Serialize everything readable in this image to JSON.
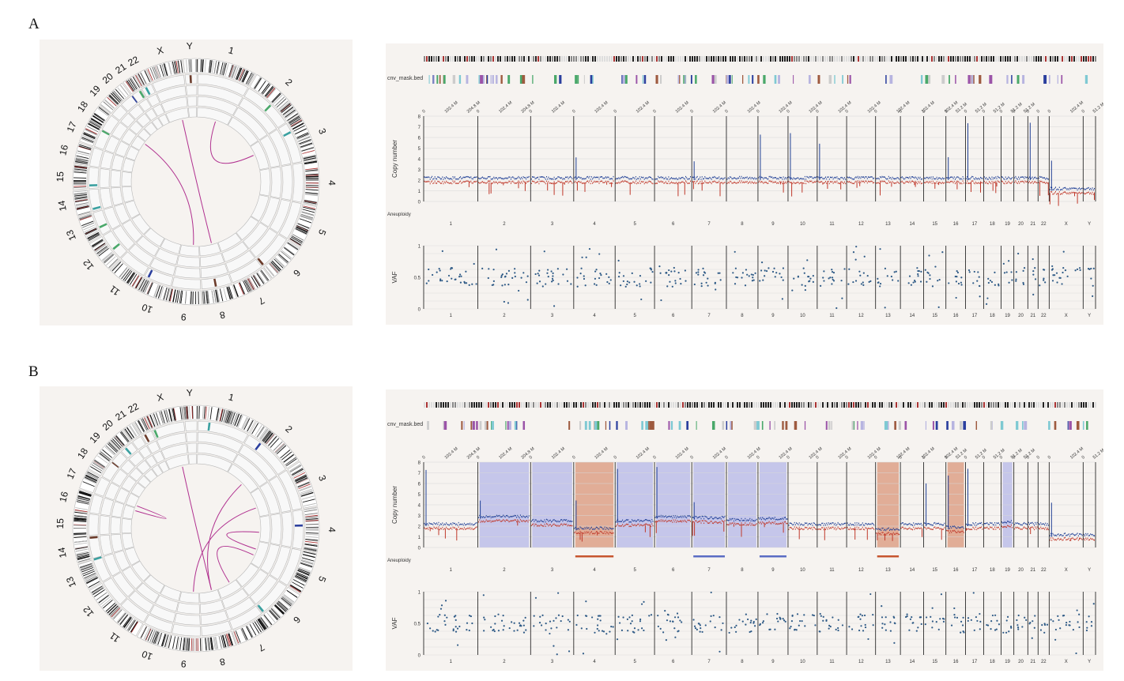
{
  "panels": [
    {
      "letter": "A",
      "track_label": "cnv_mask.bed",
      "cn_ylabel": "Copy number",
      "vaf_ylabel": "VAF",
      "aneuploidy_label": "Aneuploidy",
      "cn_yticks": [
        "0",
        "1",
        "2",
        "3",
        "4",
        "5",
        "6",
        "7",
        "8"
      ],
      "vaf_yticks": [
        "0",
        "0.5",
        "1"
      ]
    },
    {
      "letter": "B",
      "track_label": "cnv_mask.bed",
      "cn_ylabel": "Copy number",
      "vaf_ylabel": "VAF",
      "aneuploidy_label": "Aneuploidy",
      "cn_yticks": [
        "0",
        "1",
        "2",
        "3",
        "4",
        "5",
        "6",
        "7",
        "8"
      ],
      "vaf_yticks": [
        "0",
        "0.5",
        "1"
      ]
    }
  ],
  "chart_data": [
    {
      "type": "scatter",
      "panel": "A",
      "title": "",
      "xlabel": "",
      "ylabel": "Copy number",
      "ylim": [
        0,
        8
      ],
      "categories": [
        "1",
        "2",
        "3",
        "4",
        "5",
        "6",
        "7",
        "8",
        "9",
        "10",
        "11",
        "12",
        "13",
        "14",
        "15",
        "16",
        "17",
        "18",
        "19",
        "20",
        "21",
        "22",
        "X",
        "Y"
      ],
      "chrom_size_mb": [
        249,
        242,
        198,
        190,
        181,
        171,
        159,
        145,
        138,
        134,
        135,
        133,
        114,
        107,
        102,
        90,
        83,
        80,
        59,
        64,
        47,
        51,
        156,
        57
      ],
      "pos_ticks": [
        "0",
        "102.4 M",
        "204.8 M"
      ],
      "short_ticks": [
        "0",
        "51.2 M"
      ],
      "segments": [
        {
          "chrom": "1",
          "cn": 2
        },
        {
          "chrom": "2",
          "cn": 2
        },
        {
          "chrom": "3",
          "cn": 2
        },
        {
          "chrom": "4",
          "cn": 2
        },
        {
          "chrom": "5",
          "cn": 2
        },
        {
          "chrom": "6",
          "cn": 2
        },
        {
          "chrom": "7",
          "cn": 2
        },
        {
          "chrom": "8",
          "cn": 2
        },
        {
          "chrom": "9",
          "cn": 2
        },
        {
          "chrom": "10",
          "cn": 2
        },
        {
          "chrom": "11",
          "cn": 2
        },
        {
          "chrom": "12",
          "cn": 2
        },
        {
          "chrom": "13",
          "cn": 2
        },
        {
          "chrom": "14",
          "cn": 2
        },
        {
          "chrom": "15",
          "cn": 2
        },
        {
          "chrom": "16",
          "cn": 2
        },
        {
          "chrom": "17",
          "cn": 2
        },
        {
          "chrom": "18",
          "cn": 2
        },
        {
          "chrom": "19",
          "cn": 2
        },
        {
          "chrom": "20",
          "cn": 2
        },
        {
          "chrom": "21",
          "cn": 2
        },
        {
          "chrom": "22",
          "cn": 2
        },
        {
          "chrom": "X",
          "cn": 1
        },
        {
          "chrom": "Y",
          "cn": 1
        }
      ],
      "highlights": [],
      "vaf_ylim": [
        0,
        1
      ],
      "circos_labels": [
        "1",
        "2",
        "3",
        "4",
        "5",
        "6",
        "7",
        "8",
        "9",
        "10",
        "11",
        "12",
        "13",
        "14",
        "15",
        "16",
        "17",
        "18",
        "19",
        "20",
        "21",
        "22",
        "X",
        "Y"
      ],
      "links": [
        {
          "from": "1",
          "to": "3"
        },
        {
          "from": "X",
          "to": "8"
        },
        {
          "from": "18",
          "to": "9"
        }
      ]
    },
    {
      "type": "scatter",
      "panel": "B",
      "title": "",
      "xlabel": "",
      "ylabel": "Copy number",
      "ylim": [
        0,
        8
      ],
      "categories": [
        "1",
        "2",
        "3",
        "4",
        "5",
        "6",
        "7",
        "8",
        "9",
        "10",
        "11",
        "12",
        "13",
        "14",
        "15",
        "16",
        "17",
        "18",
        "19",
        "20",
        "21",
        "22",
        "X",
        "Y"
      ],
      "chrom_size_mb": [
        249,
        242,
        198,
        190,
        181,
        171,
        159,
        145,
        138,
        134,
        135,
        133,
        114,
        107,
        102,
        90,
        83,
        80,
        59,
        64,
        47,
        51,
        156,
        57
      ],
      "pos_ticks": [
        "0",
        "102.4 M",
        "204.8 M"
      ],
      "short_ticks": [
        "0",
        "51.2 M"
      ],
      "segments": [
        {
          "chrom": "1",
          "cn": 2
        },
        {
          "chrom": "2",
          "cn": 2.7
        },
        {
          "chrom": "3",
          "cn": 2.3
        },
        {
          "chrom": "4",
          "cn": 1.6
        },
        {
          "chrom": "5",
          "cn": 2.3
        },
        {
          "chrom": "6",
          "cn": 2.7
        },
        {
          "chrom": "7",
          "cn": 2.6
        },
        {
          "chrom": "8",
          "cn": 2.4
        },
        {
          "chrom": "9",
          "cn": 2.5
        },
        {
          "chrom": "10",
          "cn": 2
        },
        {
          "chrom": "11",
          "cn": 2
        },
        {
          "chrom": "12",
          "cn": 2
        },
        {
          "chrom": "13",
          "cn": 1.5
        },
        {
          "chrom": "14",
          "cn": 2
        },
        {
          "chrom": "15",
          "cn": 2
        },
        {
          "chrom": "16",
          "cn": 1.7
        },
        {
          "chrom": "17",
          "cn": 2
        },
        {
          "chrom": "18",
          "cn": 2
        },
        {
          "chrom": "19",
          "cn": 2.2
        },
        {
          "chrom": "20",
          "cn": 2
        },
        {
          "chrom": "21",
          "cn": 2
        },
        {
          "chrom": "22",
          "cn": 2
        },
        {
          "chrom": "X",
          "cn": 1
        },
        {
          "chrom": "Y",
          "cn": 1
        }
      ],
      "highlights": [
        {
          "chrom": "2",
          "kind": "gain"
        },
        {
          "chrom": "3",
          "kind": "gain"
        },
        {
          "chrom": "4",
          "kind": "loss"
        },
        {
          "chrom": "5",
          "kind": "gain"
        },
        {
          "chrom": "6",
          "kind": "gain"
        },
        {
          "chrom": "7",
          "kind": "gain"
        },
        {
          "chrom": "8",
          "kind": "gain"
        },
        {
          "chrom": "9",
          "kind": "gain"
        },
        {
          "chrom": "13",
          "kind": "loss"
        },
        {
          "chrom": "16",
          "kind": "loss"
        },
        {
          "chrom": "19",
          "kind": "gain"
        }
      ],
      "aneuploidy_bars": [
        {
          "chrom": "4",
          "kind": "loss"
        },
        {
          "chrom": "7",
          "kind": "gain"
        },
        {
          "chrom": "9",
          "kind": "gain"
        },
        {
          "chrom": "13",
          "kind": "loss"
        }
      ],
      "vaf_ylim": [
        0,
        1
      ],
      "circos_labels": [
        "1",
        "2",
        "3",
        "4",
        "5",
        "6",
        "7",
        "8",
        "9",
        "10",
        "11",
        "12",
        "13",
        "14",
        "15",
        "16",
        "17",
        "18",
        "19",
        "20",
        "21",
        "22",
        "X",
        "Y"
      ],
      "links": [
        {
          "from": "X",
          "to": "8"
        },
        {
          "from": "3",
          "to": "9"
        },
        {
          "from": "16",
          "to": "17"
        },
        {
          "from": "4",
          "to": "5"
        },
        {
          "from": "2",
          "to": "8"
        },
        {
          "from": "5",
          "to": "7"
        }
      ]
    }
  ],
  "colors": {
    "panel_bg": "#f6f3f0",
    "cn_blue": "#1f3f95",
    "cn_red": "#c0392b",
    "gain_shade": "#b4b7e8",
    "loss_shade": "#d9957a",
    "link": "#b0308f",
    "vaf_dot": "#2e5a86",
    "gain_bar": "#5a6cc4",
    "loss_bar": "#c7552f"
  }
}
